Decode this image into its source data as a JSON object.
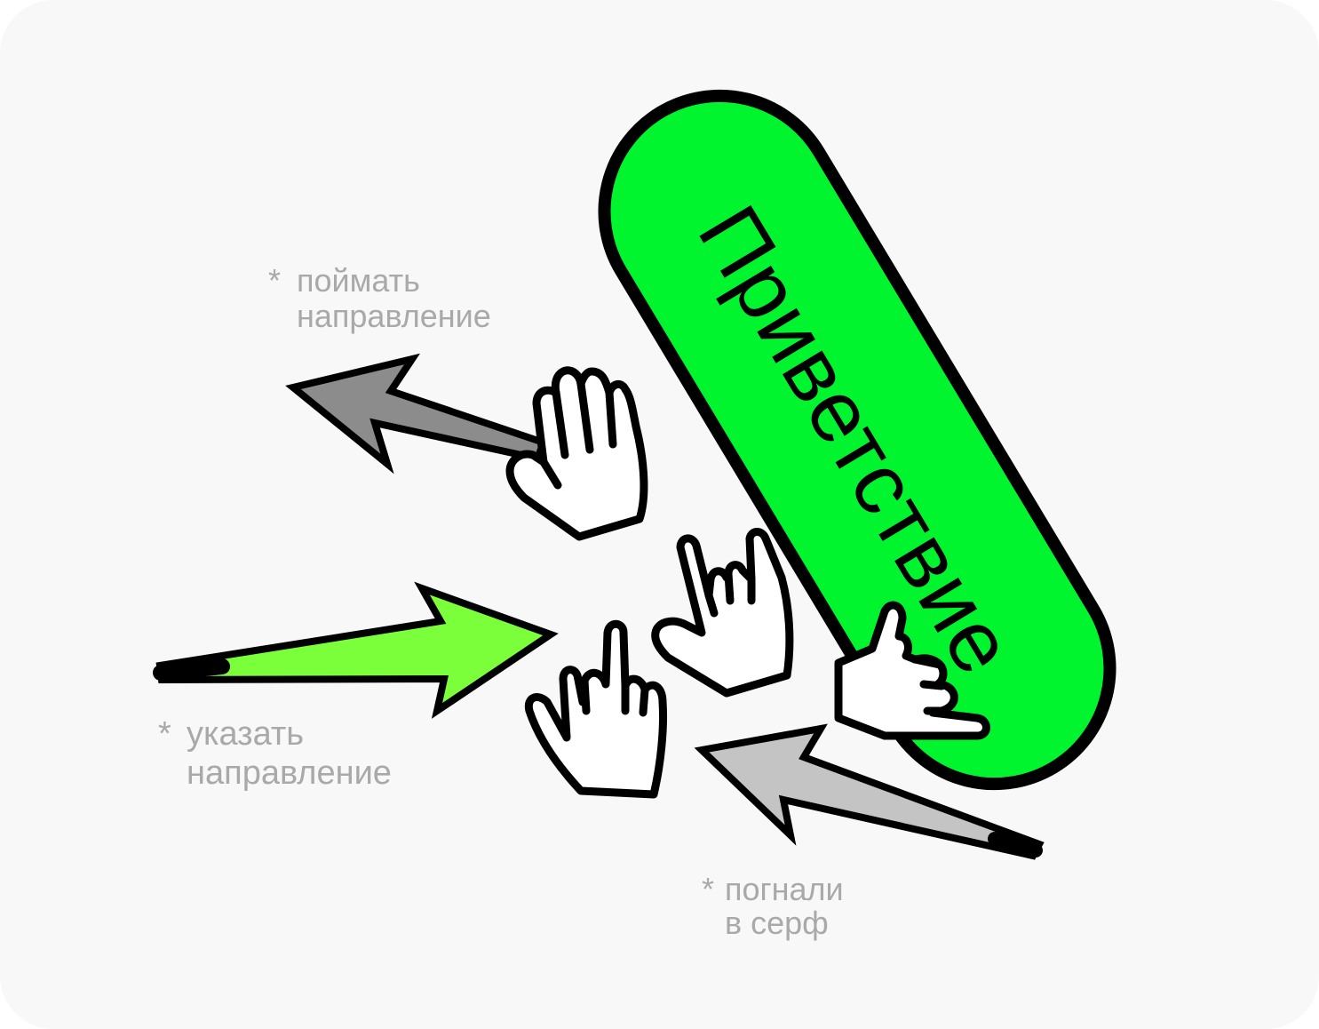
{
  "pill": {
    "label": "Приветствие",
    "color": "#00f52e"
  },
  "notes": [
    {
      "marker": "*",
      "lines": [
        "поймать",
        "направление"
      ]
    },
    {
      "marker": "*",
      "lines": [
        "указать",
        "направление"
      ]
    },
    {
      "marker": "*",
      "lines": [
        "погнали",
        "в серф"
      ]
    }
  ],
  "arrows": [
    {
      "color": "#8c8c8c"
    },
    {
      "color": "#7bff3a"
    },
    {
      "color": "#c4c4c4"
    }
  ],
  "colors": {
    "background": "#f8f8f8",
    "note_text": "#a9a9a9",
    "outline": "#000000",
    "hand_fill": "#ffffff"
  }
}
